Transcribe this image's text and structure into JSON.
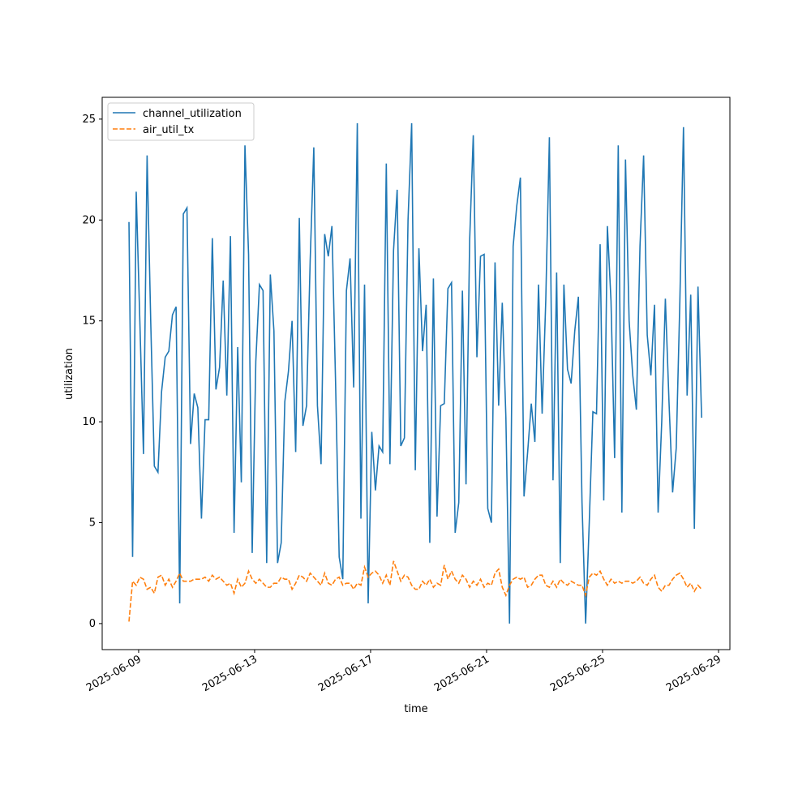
{
  "chart_data": {
    "type": "line",
    "xlabel": "time",
    "ylabel": "utilization",
    "x": [
      "2025-06-08 16:00",
      "2025-06-08 19:00",
      "2025-06-08 22:00",
      "2025-06-09 01:00",
      "2025-06-09 04:00",
      "2025-06-09 07:00",
      "2025-06-09 10:00",
      "2025-06-09 13:00",
      "2025-06-09 16:00",
      "2025-06-09 19:00",
      "2025-06-09 22:00",
      "2025-06-10 01:00",
      "2025-06-10 04:00",
      "2025-06-10 07:00",
      "2025-06-10 10:00",
      "2025-06-10 13:00",
      "2025-06-10 16:00",
      "2025-06-10 19:00",
      "2025-06-10 22:00",
      "2025-06-11 01:00",
      "2025-06-11 04:00",
      "2025-06-11 07:00",
      "2025-06-11 10:00",
      "2025-06-11 13:00",
      "2025-06-11 16:00",
      "2025-06-11 19:00",
      "2025-06-11 22:00",
      "2025-06-12 01:00",
      "2025-06-12 04:00",
      "2025-06-12 07:00",
      "2025-06-12 10:00",
      "2025-06-12 13:00",
      "2025-06-12 16:00",
      "2025-06-12 19:00",
      "2025-06-12 22:00",
      "2025-06-13 01:00",
      "2025-06-13 04:00",
      "2025-06-13 07:00",
      "2025-06-13 10:00",
      "2025-06-13 13:00",
      "2025-06-13 16:00",
      "2025-06-13 19:00",
      "2025-06-13 22:00",
      "2025-06-14 01:00",
      "2025-06-14 04:00",
      "2025-06-14 07:00",
      "2025-06-14 10:00",
      "2025-06-14 13:00",
      "2025-06-14 16:00",
      "2025-06-14 19:00",
      "2025-06-14 22:00",
      "2025-06-15 01:00",
      "2025-06-15 04:00",
      "2025-06-15 07:00",
      "2025-06-15 10:00",
      "2025-06-15 13:00",
      "2025-06-15 16:00",
      "2025-06-15 19:00",
      "2025-06-15 22:00",
      "2025-06-16 01:00",
      "2025-06-16 04:00",
      "2025-06-16 07:00",
      "2025-06-16 10:00",
      "2025-06-16 13:00",
      "2025-06-16 16:00",
      "2025-06-16 19:00",
      "2025-06-16 22:00",
      "2025-06-17 01:00",
      "2025-06-17 04:00",
      "2025-06-17 07:00",
      "2025-06-17 10:00",
      "2025-06-17 13:00",
      "2025-06-17 16:00",
      "2025-06-17 19:00",
      "2025-06-17 22:00",
      "2025-06-18 01:00",
      "2025-06-18 04:00",
      "2025-06-18 07:00",
      "2025-06-18 10:00",
      "2025-06-18 13:00",
      "2025-06-18 16:00",
      "2025-06-18 19:00",
      "2025-06-18 22:00",
      "2025-06-19 01:00",
      "2025-06-19 04:00",
      "2025-06-19 07:00",
      "2025-06-19 10:00",
      "2025-06-19 13:00",
      "2025-06-19 16:00",
      "2025-06-19 19:00",
      "2025-06-19 22:00",
      "2025-06-20 01:00",
      "2025-06-20 04:00",
      "2025-06-20 07:00",
      "2025-06-20 10:00",
      "2025-06-20 13:00",
      "2025-06-20 16:00",
      "2025-06-20 19:00",
      "2025-06-20 22:00",
      "2025-06-21 01:00",
      "2025-06-21 04:00",
      "2025-06-21 07:00",
      "2025-06-21 10:00",
      "2025-06-21 13:00",
      "2025-06-21 16:00",
      "2025-06-21 19:00",
      "2025-06-21 22:00",
      "2025-06-22 01:00",
      "2025-06-22 04:00",
      "2025-06-22 07:00",
      "2025-06-22 10:00",
      "2025-06-22 13:00",
      "2025-06-22 16:00",
      "2025-06-22 19:00",
      "2025-06-22 22:00",
      "2025-06-23 01:00",
      "2025-06-23 04:00",
      "2025-06-23 07:00",
      "2025-06-23 10:00",
      "2025-06-23 13:00",
      "2025-06-23 16:00",
      "2025-06-23 19:00",
      "2025-06-23 22:00",
      "2025-06-24 01:00",
      "2025-06-24 04:00",
      "2025-06-24 07:00",
      "2025-06-24 10:00",
      "2025-06-24 13:00",
      "2025-06-24 16:00",
      "2025-06-24 19:00",
      "2025-06-24 22:00",
      "2025-06-25 01:00",
      "2025-06-25 04:00",
      "2025-06-25 07:00",
      "2025-06-25 10:00",
      "2025-06-25 13:00",
      "2025-06-25 16:00",
      "2025-06-25 19:00",
      "2025-06-25 22:00",
      "2025-06-26 01:00",
      "2025-06-26 04:00",
      "2025-06-26 07:00",
      "2025-06-26 10:00",
      "2025-06-26 13:00",
      "2025-06-26 16:00",
      "2025-06-26 19:00",
      "2025-06-26 22:00",
      "2025-06-27 01:00",
      "2025-06-27 04:00",
      "2025-06-27 07:00",
      "2025-06-27 10:00",
      "2025-06-27 13:00",
      "2025-06-27 16:00",
      "2025-06-27 19:00",
      "2025-06-27 22:00",
      "2025-06-28 01:00",
      "2025-06-28 04:00",
      "2025-06-28 07:00",
      "2025-06-28 10:00"
    ],
    "series": [
      {
        "name": "channel_utilization",
        "color": "#1f77b4",
        "linestyle": "solid",
        "values": [
          19.9,
          3.3,
          21.4,
          15,
          8.4,
          23.2,
          15,
          7.8,
          7.5,
          11.5,
          13.2,
          13.5,
          15.3,
          15.7,
          1.0,
          20.3,
          20.6,
          8.9,
          11.4,
          10.7,
          5.2,
          10.1,
          10.1,
          19.1,
          11.6,
          12.7,
          17.0,
          11.3,
          19.2,
          4.5,
          13.7,
          7.0,
          23.7,
          18.3,
          3.5,
          13,
          16.8,
          16.5,
          3.0,
          17.3,
          14.5,
          3.0,
          4,
          11,
          12.5,
          15,
          8.5,
          20.1,
          9.8,
          10.8,
          18,
          23.6,
          10.8,
          7.9,
          19.3,
          18.2,
          19.7,
          12,
          3.3,
          2.2,
          16.5,
          18.1,
          11.7,
          24.8,
          5.2,
          16.8,
          1.0,
          9.5,
          6.6,
          8.8,
          8.5,
          22.8,
          7.9,
          18.5,
          21.5,
          8.8,
          9.2,
          20,
          24.8,
          7.6,
          18.6,
          13.5,
          15.8,
          4.0,
          17.1,
          5.3,
          10.8,
          10.9,
          16.6,
          16.9,
          4.5,
          6,
          16.5,
          6.9,
          19,
          24.2,
          13.2,
          18.2,
          18.3,
          5.7,
          5,
          17.9,
          10.8,
          15.9,
          10.2,
          0,
          18.7,
          20.7,
          22.1,
          6.3,
          8.5,
          10.9,
          9,
          16.8,
          10.4,
          16,
          24.1,
          7.1,
          17.4,
          3,
          16.8,
          12.6,
          11.9,
          14.5,
          16.2,
          6,
          0,
          5,
          10.5,
          10.4,
          18.8,
          6.1,
          19.7,
          16,
          8.2,
          23.7,
          5.5,
          23.0,
          15,
          12.3,
          10.6,
          18.7,
          23.2,
          14.3,
          12.3,
          15.8,
          5.5,
          10,
          16.1,
          11,
          6.5,
          8.7,
          16,
          24.6,
          11.3,
          16.3,
          4.7,
          16.7,
          10.2
        ]
      },
      {
        "name": "air_util_tx",
        "color": "#ff7f0e",
        "linestyle": "dashed",
        "values": [
          0.1,
          2.1,
          1.9,
          2.3,
          2.2,
          1.7,
          1.8,
          1.5,
          2.3,
          2.4,
          1.9,
          2.2,
          1.8,
          2.1,
          2.5,
          2.1,
          2.1,
          2.1,
          2.2,
          2.2,
          2.2,
          2.3,
          2.1,
          2.4,
          2.2,
          2.3,
          2.1,
          1.9,
          2.0,
          1.5,
          2.2,
          1.8,
          2.0,
          2.6,
          2.2,
          2.0,
          2.2,
          2.0,
          1.8,
          1.8,
          2.0,
          2.0,
          2.3,
          2.2,
          2.2,
          1.7,
          2.0,
          2.4,
          2.3,
          2.1,
          2.5,
          2.3,
          2.1,
          1.9,
          2.5,
          2.0,
          1.9,
          2.2,
          2.3,
          1.9,
          2.0,
          2.0,
          1.7,
          2.0,
          1.9,
          2.8,
          2.3,
          2.5,
          2.6,
          2.4,
          2.0,
          2.4,
          1.9,
          3.1,
          2.6,
          2.1,
          2.4,
          2.3,
          1.9,
          1.7,
          1.7,
          2.1,
          1.9,
          2.2,
          1.8,
          2.0,
          1.9,
          2.9,
          2.2,
          2.6,
          2.2,
          2.0,
          2.4,
          2.2,
          1.8,
          2.1,
          1.9,
          2.2,
          1.8,
          2.0,
          1.9,
          2.5,
          2.7,
          1.8,
          1.4,
          1.9,
          2.2,
          2.3,
          2.2,
          2.3,
          1.8,
          1.9,
          2.2,
          2.4,
          2.4,
          1.9,
          1.8,
          2.1,
          1.8,
          2.2,
          2.0,
          1.9,
          2.1,
          2.0,
          1.9,
          1.9,
          1.4,
          2.3,
          2.5,
          2.4,
          2.6,
          2.2,
          1.9,
          2.2,
          2.0,
          2.1,
          2.0,
          2.1,
          2.1,
          2.0,
          2.1,
          2.3,
          2.0,
          1.9,
          2.2,
          2.4,
          1.8,
          1.6,
          1.9,
          1.9,
          2.2,
          2.4,
          2.5,
          2.2,
          1.8,
          2.0,
          1.6,
          1.9,
          1.7
        ]
      }
    ],
    "xlim": [
      "2025-06-07 17:50",
      "2025-06-29 09:25"
    ],
    "xticks": [
      "2025-06-09",
      "2025-06-13",
      "2025-06-17",
      "2025-06-21",
      "2025-06-25",
      "2025-06-29"
    ],
    "ylim": [
      -1.29,
      26.08
    ],
    "yticks": [
      0,
      5,
      10,
      15,
      20,
      25
    ],
    "grid": false,
    "legend": "upper left"
  }
}
